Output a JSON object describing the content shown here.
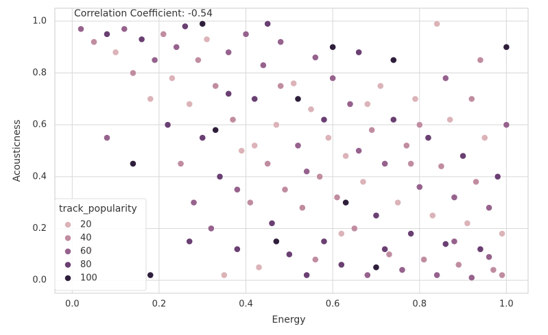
{
  "chart_data": {
    "type": "scatter",
    "annotation": "Correlation Coefficient: -0.54",
    "xlabel": "Energy",
    "ylabel": "Acousticness",
    "xlim": [
      -0.04,
      1.05
    ],
    "ylim": [
      -0.05,
      1.05
    ],
    "xticks": [
      {
        "value": 0,
        "label": "0.0"
      },
      {
        "value": 0.2,
        "label": "0.2"
      },
      {
        "value": 0.4,
        "label": "0.4"
      },
      {
        "value": 0.6,
        "label": "0.6"
      },
      {
        "value": 0.8,
        "label": "0.8"
      },
      {
        "value": 1,
        "label": "1.0"
      }
    ],
    "yticks": [
      {
        "value": 0,
        "label": "0.0"
      },
      {
        "value": 0.2,
        "label": "0.2"
      },
      {
        "value": 0.4,
        "label": "0.4"
      },
      {
        "value": 0.6,
        "label": "0.6"
      },
      {
        "value": 0.8,
        "label": "0.8"
      },
      {
        "value": 1,
        "label": "1.0"
      }
    ],
    "grid": true,
    "legend_position": "lower left",
    "hue_title": "track_popularity",
    "legend": [
      {
        "value": 20,
        "color": "#dbb3b8"
      },
      {
        "value": 40,
        "color": "#c08ca0"
      },
      {
        "value": 60,
        "color": "#96628d"
      },
      {
        "value": 80,
        "color": "#6a3f72"
      },
      {
        "value": 100,
        "color": "#2e1e3b"
      }
    ],
    "x": [
      0.02,
      0.05,
      0.08,
      0.1,
      0.12,
      0.14,
      0.16,
      0.18,
      0.19,
      0.21,
      0.22,
      0.23,
      0.24,
      0.25,
      0.26,
      0.27,
      0.28,
      0.29,
      0.3,
      0.31,
      0.32,
      0.33,
      0.34,
      0.35,
      0.36,
      0.37,
      0.38,
      0.39,
      0.4,
      0.41,
      0.42,
      0.43,
      0.44,
      0.45,
      0.46,
      0.47,
      0.48,
      0.49,
      0.5,
      0.51,
      0.52,
      0.53,
      0.54,
      0.55,
      0.56,
      0.57,
      0.58,
      0.59,
      0.6,
      0.61,
      0.62,
      0.63,
      0.64,
      0.65,
      0.66,
      0.67,
      0.68,
      0.69,
      0.7,
      0.71,
      0.72,
      0.73,
      0.74,
      0.75,
      0.76,
      0.77,
      0.78,
      0.79,
      0.8,
      0.81,
      0.82,
      0.83,
      0.84,
      0.85,
      0.86,
      0.87,
      0.88,
      0.89,
      0.9,
      0.91,
      0.92,
      0.93,
      0.94,
      0.95,
      0.96,
      0.97,
      0.98,
      0.99,
      1.0,
      1.0,
      0.99,
      0.74,
      0.84,
      0.6,
      0.45,
      0.3,
      0.08,
      0.14,
      0.04,
      0.18,
      0.27,
      0.33,
      0.52,
      0.63,
      0.7,
      0.47,
      0.38,
      0.56,
      0.66,
      0.78,
      0.88,
      0.92,
      0.42,
      0.36,
      0.58,
      0.48,
      0.54,
      0.68,
      0.8,
      0.86,
      0.94,
      0.62,
      0.72,
      0.96
    ],
    "values": [
      0.97,
      0.92,
      0.95,
      0.88,
      0.97,
      0.8,
      0.93,
      0.7,
      0.85,
      0.95,
      0.6,
      0.78,
      0.9,
      0.45,
      0.98,
      0.68,
      0.3,
      0.85,
      0.55,
      0.93,
      0.2,
      0.75,
      0.4,
      0.02,
      0.88,
      0.62,
      0.12,
      0.5,
      0.95,
      0.3,
      0.7,
      0.05,
      0.83,
      0.45,
      0.22,
      0.6,
      0.92,
      0.35,
      0.1,
      0.76,
      0.52,
      0.28,
      0.02,
      0.66,
      0.86,
      0.4,
      0.15,
      0.55,
      0.78,
      0.32,
      0.06,
      0.48,
      0.68,
      0.2,
      0.88,
      0.38,
      0.02,
      0.58,
      0.25,
      0.75,
      0.45,
      0.1,
      0.62,
      0.3,
      0.04,
      0.52,
      0.18,
      0.7,
      0.36,
      0.08,
      0.55,
      0.25,
      0.02,
      0.44,
      0.14,
      0.62,
      0.32,
      0.06,
      0.48,
      0.22,
      0.01,
      0.38,
      0.12,
      0.55,
      0.28,
      0.04,
      0.4,
      0.18,
      0.9,
      0.6,
      0.02,
      0.85,
      0.99,
      0.9,
      0.99,
      0.99,
      0.55,
      0.45,
      0.12,
      0.02,
      0.15,
      0.58,
      0.7,
      0.3,
      0.05,
      0.15,
      0.35,
      0.08,
      0.5,
      0.45,
      0.15,
      0.7,
      0.52,
      0.72,
      0.62,
      0.75,
      0.42,
      0.68,
      0.6,
      0.78,
      0.85,
      0.18,
      0.12,
      0.09
    ],
    "hue": [
      60,
      40,
      80,
      20,
      60,
      40,
      80,
      20,
      60,
      40,
      80,
      20,
      60,
      40,
      80,
      20,
      60,
      40,
      80,
      20,
      60,
      40,
      80,
      20,
      60,
      40,
      80,
      20,
      60,
      40,
      80,
      20,
      60,
      40,
      80,
      20,
      60,
      40,
      80,
      20,
      60,
      40,
      80,
      20,
      60,
      40,
      80,
      20,
      60,
      40,
      80,
      20,
      60,
      40,
      80,
      20,
      60,
      40,
      80,
      20,
      60,
      40,
      80,
      20,
      60,
      40,
      80,
      20,
      60,
      40,
      80,
      20,
      60,
      40,
      80,
      20,
      60,
      40,
      80,
      20,
      60,
      40,
      80,
      20,
      60,
      40,
      80,
      20,
      100,
      60,
      40,
      100,
      20,
      100,
      80,
      100,
      60,
      100,
      40,
      100,
      80,
      100,
      100,
      100,
      100,
      100,
      60,
      40,
      60,
      40,
      60,
      40,
      20,
      80,
      80,
      40,
      60,
      20,
      40,
      60,
      40,
      20,
      80,
      60
    ]
  }
}
